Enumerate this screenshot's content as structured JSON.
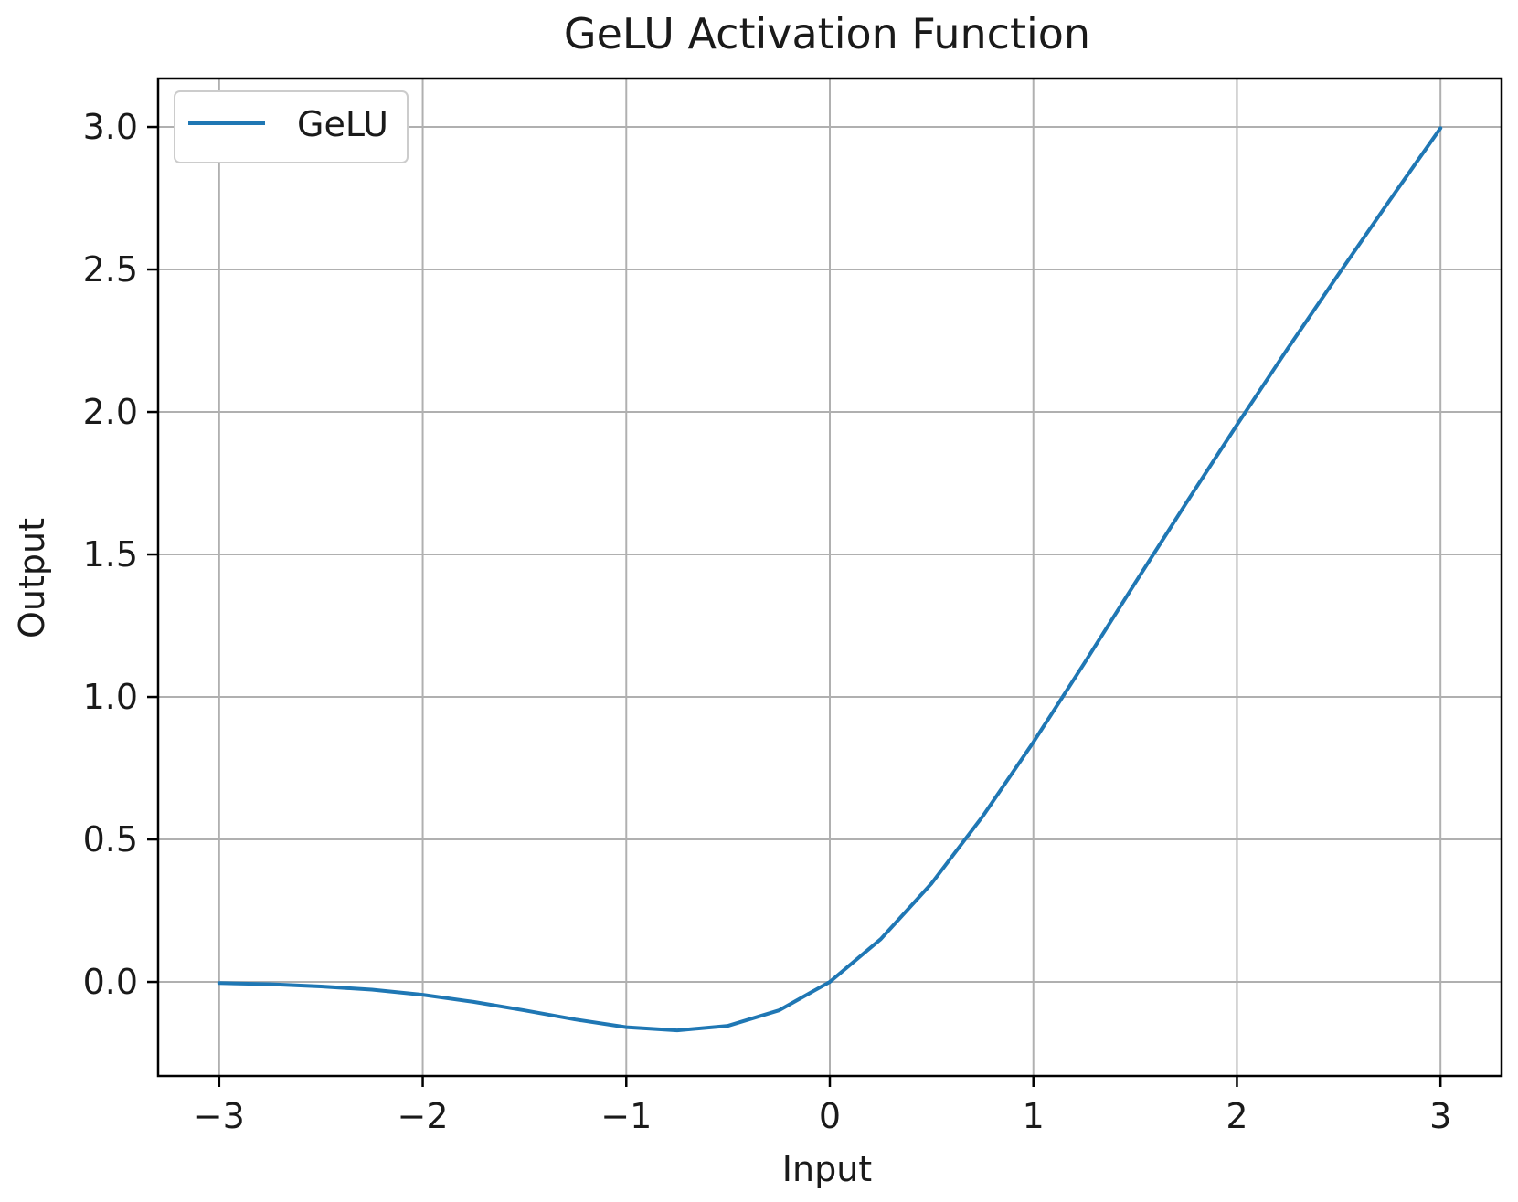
{
  "chart_data": {
    "type": "line",
    "title": "GeLU Activation Function",
    "xlabel": "Input",
    "ylabel": "Output",
    "xlim": [
      -3.3,
      3.3
    ],
    "ylim": [
      -0.33,
      3.17
    ],
    "grid": true,
    "legend_position": "top-left",
    "x_ticks": [
      -3,
      -2,
      -1,
      0,
      1,
      2,
      3
    ],
    "x_tick_labels": [
      "−3",
      "−2",
      "−1",
      "0",
      "1",
      "2",
      "3"
    ],
    "y_ticks": [
      0.0,
      0.5,
      1.0,
      1.5,
      2.0,
      2.5,
      3.0
    ],
    "y_tick_labels": [
      "0.0",
      "0.5",
      "1.0",
      "1.5",
      "2.0",
      "2.5",
      "3.0"
    ],
    "series": [
      {
        "name": "GeLU",
        "color": "#1f77b4",
        "x": [
          -3.0,
          -2.75,
          -2.5,
          -2.25,
          -2.0,
          -1.75,
          -1.5,
          -1.25,
          -1.0,
          -0.75,
          -0.5,
          -0.25,
          0.0,
          0.25,
          0.5,
          0.75,
          1.0,
          1.25,
          1.5,
          1.75,
          2.0,
          2.25,
          2.5,
          2.75,
          3.0
        ],
        "y": [
          -0.004,
          -0.008,
          -0.016,
          -0.027,
          -0.045,
          -0.07,
          -0.1,
          -0.132,
          -0.159,
          -0.17,
          -0.154,
          -0.1,
          0.0,
          0.15,
          0.346,
          0.58,
          0.841,
          1.118,
          1.4,
          1.68,
          1.955,
          2.223,
          2.484,
          2.742,
          2.996
        ]
      }
    ]
  }
}
